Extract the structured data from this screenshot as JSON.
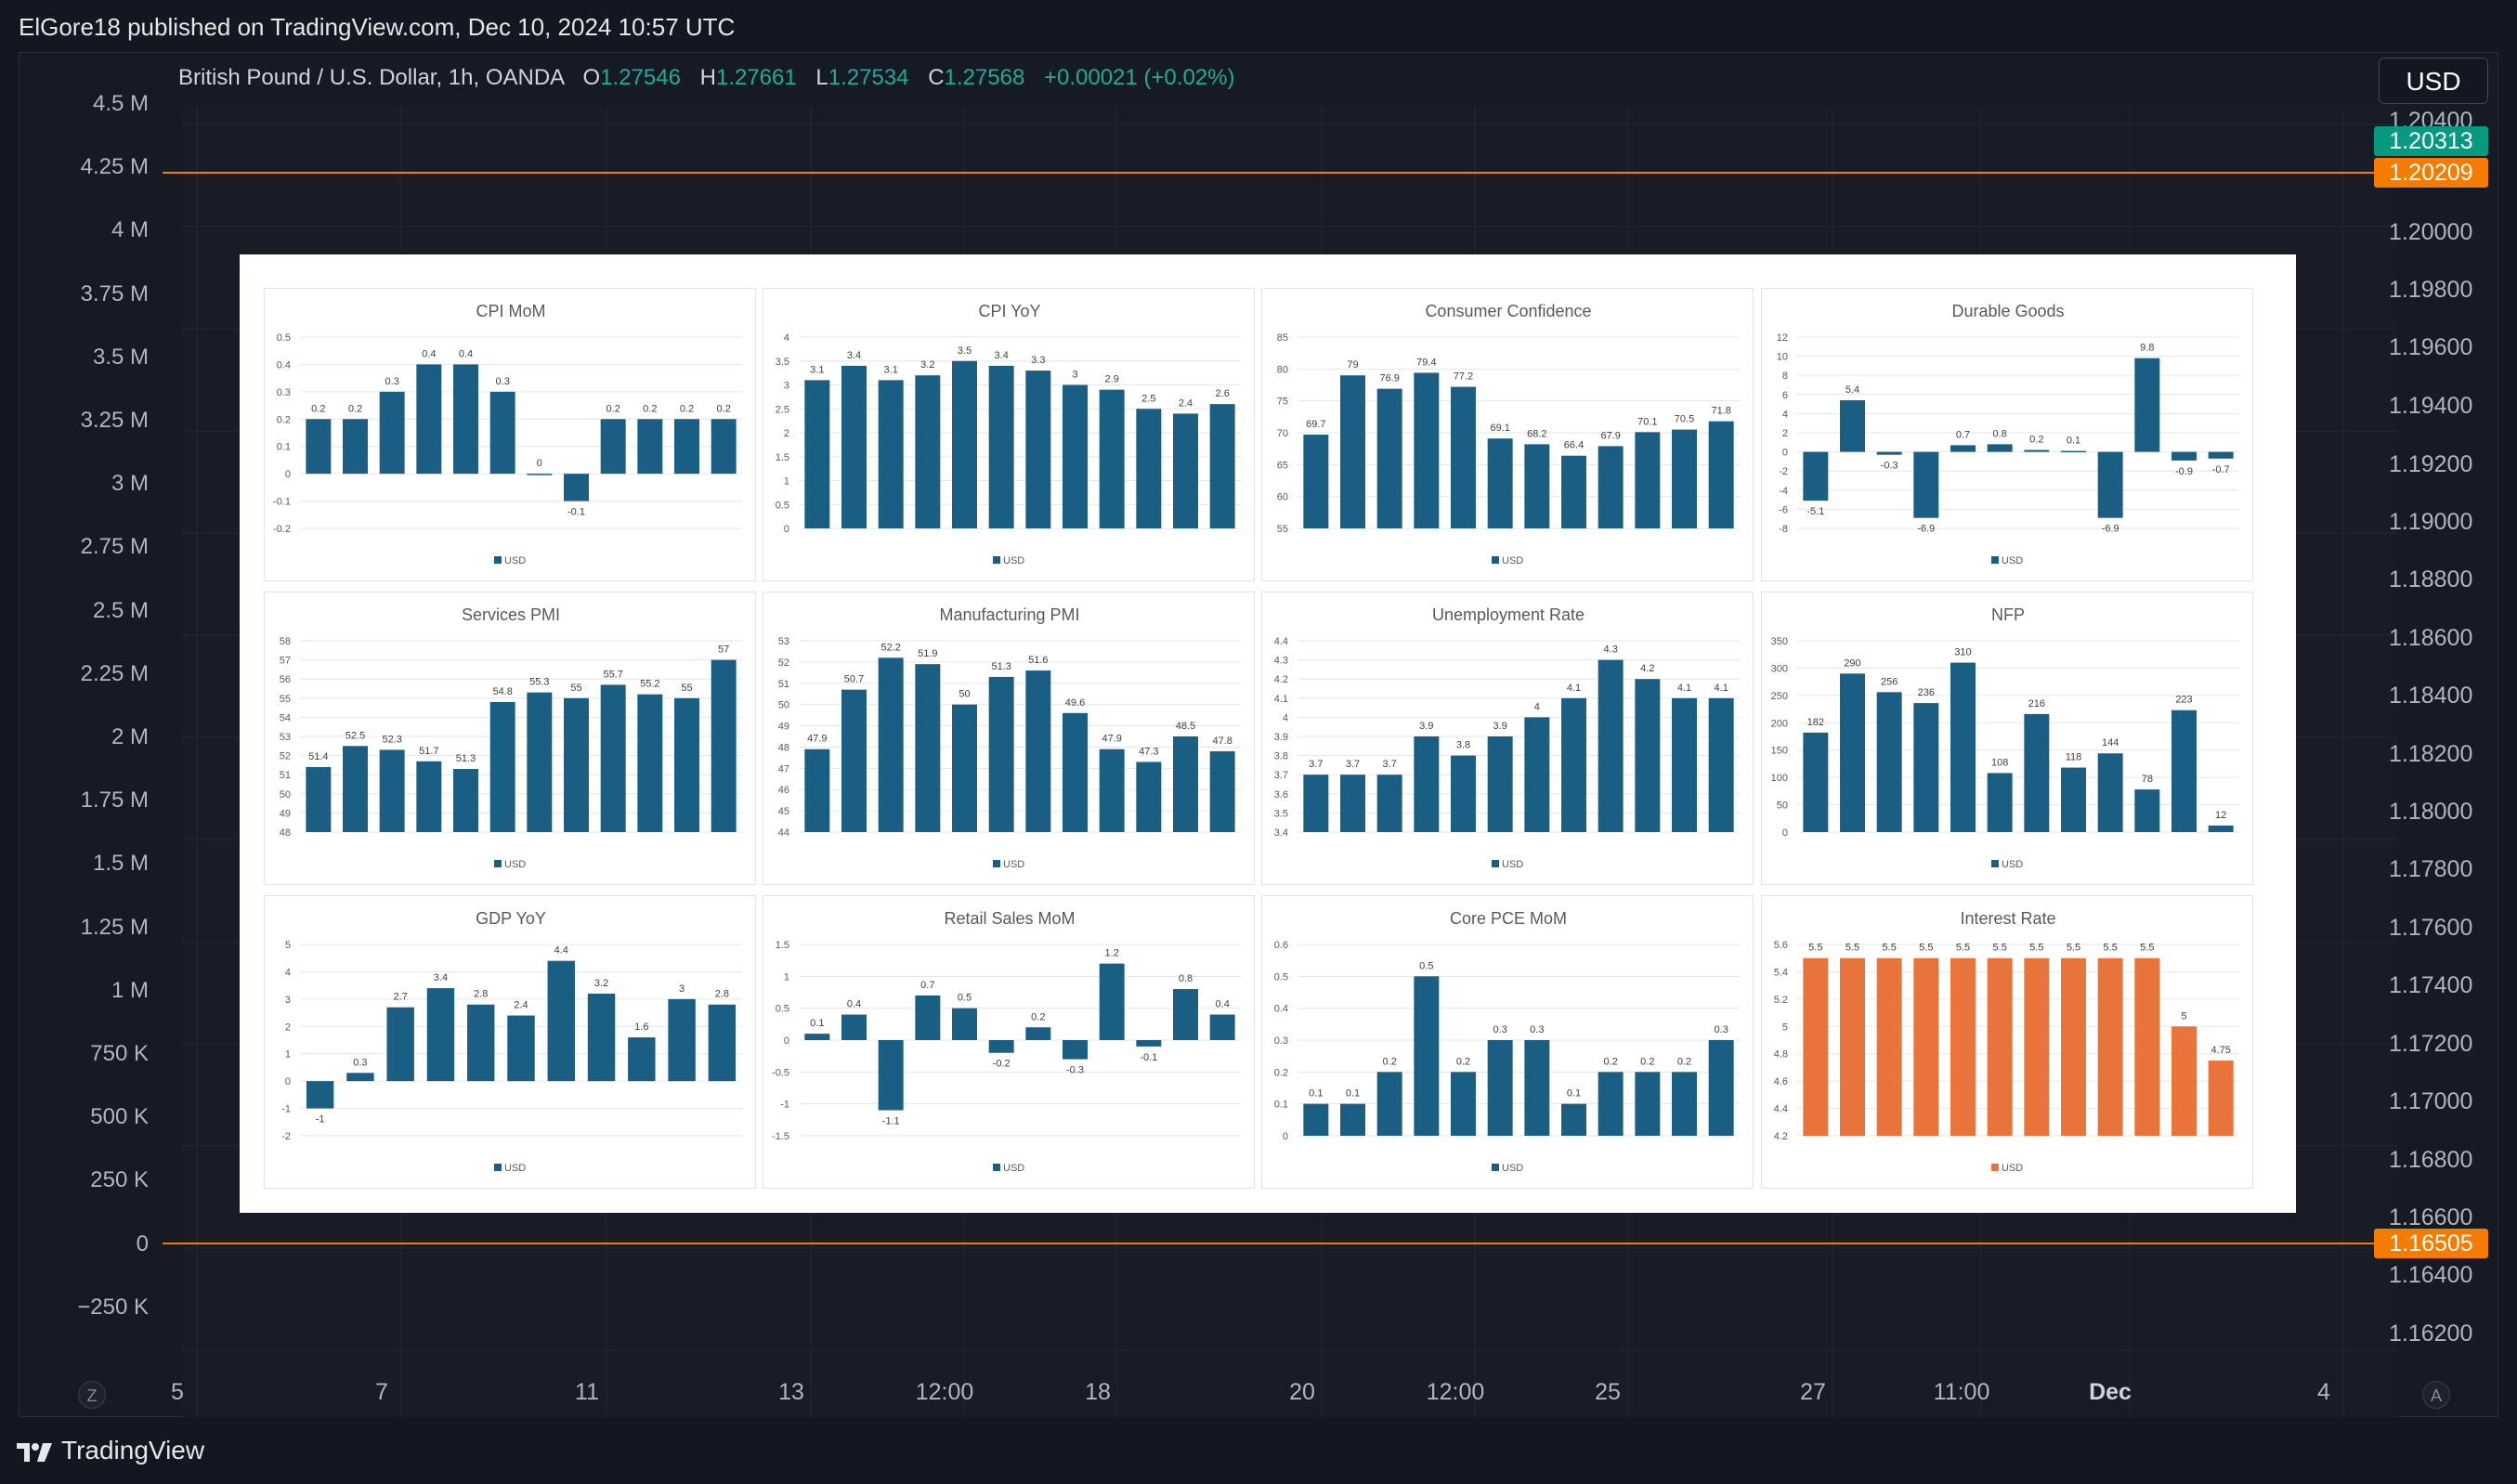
{
  "header": {
    "publish_line": "ElGore18 published on TradingView.com, Dec 10, 2024 10:57 UTC"
  },
  "legend": {
    "symbol": "British Pound / U.S. Dollar, 1h, OANDA",
    "open_label": "O",
    "open": "1.27546",
    "high_label": "H",
    "high": "1.27661",
    "low_label": "L",
    "low": "1.27534",
    "close_label": "C",
    "close": "1.27568",
    "change": "+0.00021 (+0.02%)"
  },
  "currency_button": "USD",
  "left_axis": [
    "4.5 M",
    "4.25 M",
    "4 M",
    "3.75 M",
    "3.5 M",
    "3.25 M",
    "3 M",
    "2.75 M",
    "2.5 M",
    "2.25 M",
    "2 M",
    "1.75 M",
    "1.5 M",
    "1.25 M",
    "1 M",
    "750 K",
    "500 K",
    "250 K",
    "0",
    "−250 K"
  ],
  "right_axis": [
    "1.20400",
    "1.20000",
    "1.19800",
    "1.19600",
    "1.19400",
    "1.19200",
    "1.19000",
    "1.18800",
    "1.18600",
    "1.18400",
    "1.18200",
    "1.18000",
    "1.17800",
    "1.17600",
    "1.17400",
    "1.17200",
    "1.17000",
    "1.16800",
    "1.16600",
    "1.16400",
    "1.16200"
  ],
  "price_badges": {
    "top": "1.20313",
    "mid": "1.20209",
    "low": "1.16505"
  },
  "x_axis": [
    "5",
    "7",
    "11",
    "13",
    "12:00",
    "18",
    "20",
    "12:00",
    "25",
    "27",
    "11:00",
    "Dec",
    "4"
  ],
  "corner_buttons": {
    "left": "Z",
    "right": "A"
  },
  "footer": {
    "brand": "TradingView"
  },
  "colors": {
    "bar": "#1b5e83",
    "bar_orange": "#e8743b",
    "accent_green": "#22ab94",
    "line_orange": "#f57c00"
  },
  "chart_data": [
    {
      "type": "bar",
      "title": "CPI MoM",
      "legend": "USD",
      "ylim": [
        -0.2,
        0.5
      ],
      "yticks": [
        "-0.2",
        "-0.1",
        "0",
        "0.1",
        "0.2",
        "0.3",
        "0.4",
        "0.5"
      ],
      "values": [
        0.2,
        0.2,
        0.3,
        0.4,
        0.4,
        0.3,
        0,
        -0.1,
        0.2,
        0.2,
        0.2,
        0.2
      ],
      "labels": [
        "0.2",
        "0.2",
        "0.3",
        "0.4",
        "0.4",
        "0.3",
        "0",
        "-0.1",
        "0.2",
        "0.2",
        "0.2",
        "0.2"
      ]
    },
    {
      "type": "bar",
      "title": "CPI YoY",
      "legend": "USD",
      "ylim": [
        0,
        4
      ],
      "yticks": [
        "0",
        "0.5",
        "1",
        "1.5",
        "2",
        "2.5",
        "3",
        "3.5",
        "4"
      ],
      "values": [
        3.1,
        3.4,
        3.1,
        3.2,
        3.5,
        3.4,
        3.3,
        3,
        2.9,
        2.5,
        2.4,
        2.6
      ],
      "labels": [
        "3.1",
        "3.4",
        "3.1",
        "3.2",
        "3.5",
        "3.4",
        "3.3",
        "3",
        "2.9",
        "2.5",
        "2.4",
        "2.6"
      ]
    },
    {
      "type": "bar",
      "title": "Consumer Confidence",
      "legend": "USD",
      "ylim": [
        55,
        85
      ],
      "yticks": [
        "55",
        "60",
        "65",
        "70",
        "75",
        "80",
        "85"
      ],
      "values": [
        69.7,
        79,
        76.9,
        79.4,
        77.2,
        69.1,
        68.2,
        66.4,
        67.9,
        70.1,
        70.5,
        71.8
      ],
      "labels": [
        "69.7",
        "79",
        "76.9",
        "79.4",
        "77.2",
        "69.1",
        "68.2",
        "66.4",
        "67.9",
        "70.1",
        "70.5",
        "71.8"
      ]
    },
    {
      "type": "bar",
      "title": "Durable Goods",
      "legend": "USD",
      "ylim": [
        -8,
        12
      ],
      "yticks": [
        "-8",
        "-6",
        "-4",
        "-2",
        "0",
        "2",
        "4",
        "6",
        "8",
        "10",
        "12"
      ],
      "values": [
        -5.1,
        5.4,
        -0.3,
        -6.9,
        0.7,
        0.8,
        0.2,
        0.1,
        -6.9,
        9.8,
        -0.9,
        -0.7
      ],
      "labels": [
        "-5.1",
        "5.4",
        "-0.3",
        "-6.9",
        "0.7",
        "0.8",
        "0.2",
        "0.1",
        "-6.9",
        "9.8",
        "-0.9",
        "-0.7"
      ]
    },
    {
      "type": "bar",
      "title": "Services PMI",
      "legend": "USD",
      "ylim": [
        48,
        58
      ],
      "yticks": [
        "48",
        "49",
        "50",
        "51",
        "52",
        "53",
        "54",
        "55",
        "56",
        "57",
        "58"
      ],
      "values": [
        51.4,
        52.5,
        52.3,
        51.7,
        51.3,
        54.8,
        55.3,
        55,
        55.7,
        55.2,
        55,
        57
      ],
      "labels": [
        "51.4",
        "52.5",
        "52.3",
        "51.7",
        "51.3",
        "54.8",
        "55.3",
        "55",
        "55.7",
        "55.2",
        "55",
        "57"
      ]
    },
    {
      "type": "bar",
      "title": "Manufacturing PMI",
      "legend": "USD",
      "ylim": [
        44,
        53
      ],
      "yticks": [
        "44",
        "45",
        "46",
        "47",
        "48",
        "49",
        "50",
        "51",
        "52",
        "53"
      ],
      "values": [
        47.9,
        50.7,
        52.2,
        51.9,
        50,
        51.3,
        51.6,
        49.6,
        47.9,
        47.3,
        48.5,
        47.8
      ],
      "labels": [
        "47.9",
        "50.7",
        "52.2",
        "51.9",
        "50",
        "51.3",
        "51.6",
        "49.6",
        "47.9",
        "47.3",
        "48.5",
        "47.8"
      ]
    },
    {
      "type": "bar",
      "title": "Unemployment Rate",
      "legend": "USD",
      "ylim": [
        3.4,
        4.4
      ],
      "yticks": [
        "3.4",
        "3.5",
        "3.6",
        "3.7",
        "3.8",
        "3.9",
        "4",
        "4.1",
        "4.2",
        "4.3",
        "4.4"
      ],
      "values": [
        3.7,
        3.7,
        3.7,
        3.9,
        3.8,
        3.9,
        4,
        4.1,
        4.3,
        4.2,
        4.1,
        4.1
      ],
      "labels": [
        "3.7",
        "3.7",
        "3.7",
        "3.9",
        "3.8",
        "3.9",
        "4",
        "4.1",
        "4.3",
        "4.2",
        "4.1",
        "4.1"
      ]
    },
    {
      "type": "bar",
      "title": "NFP",
      "legend": "USD",
      "ylim": [
        0,
        350
      ],
      "yticks": [
        "0",
        "50",
        "100",
        "150",
        "200",
        "250",
        "300",
        "350"
      ],
      "values": [
        182,
        290,
        256,
        236,
        310,
        108,
        216,
        118,
        144,
        78,
        223,
        12
      ],
      "labels": [
        "182",
        "290",
        "256",
        "236",
        "310",
        "108",
        "216",
        "118",
        "144",
        "78",
        "223",
        "12"
      ]
    },
    {
      "type": "bar",
      "title": "GDP YoY",
      "legend": "USD",
      "ylim": [
        -2,
        5
      ],
      "yticks": [
        "-2",
        "-1",
        "0",
        "1",
        "2",
        "3",
        "4",
        "5"
      ],
      "values": [
        -1,
        0.3,
        2.7,
        3.4,
        2.8,
        2.4,
        4.4,
        3.2,
        1.6,
        3,
        2.8
      ],
      "labels": [
        "-1",
        "0.3",
        "2.7",
        "3.4",
        "2.8",
        "2.4",
        "4.4",
        "3.2",
        "1.6",
        "3",
        "2.8"
      ]
    },
    {
      "type": "bar",
      "title": "Retail Sales MoM",
      "legend": "USD",
      "ylim": [
        -1.5,
        1.5
      ],
      "yticks": [
        "-1.5",
        "-1",
        "-0.5",
        "0",
        "0.5",
        "1",
        "1.5"
      ],
      "values": [
        0.1,
        0.4,
        -1.1,
        0.7,
        0.5,
        -0.2,
        0.2,
        -0.3,
        1.2,
        -0.1,
        0.8,
        0.4
      ],
      "labels": [
        "0.1",
        "0.4",
        "-1.1",
        "0.7",
        "0.5",
        "-0.2",
        "0.2",
        "-0.3",
        "1.2",
        "-0.1",
        "0.8",
        "0.4"
      ]
    },
    {
      "type": "bar",
      "title": "Core PCE MoM",
      "legend": "USD",
      "ylim": [
        0,
        0.6
      ],
      "yticks": [
        "0",
        "0.1",
        "0.2",
        "0.3",
        "0.4",
        "0.5",
        "0.6"
      ],
      "values": [
        0.1,
        0.1,
        0.2,
        0.5,
        0.2,
        0.3,
        0.3,
        0.1,
        0.2,
        0.2,
        0.2,
        0.3
      ],
      "labels": [
        "0.1",
        "0.1",
        "0.2",
        "0.5",
        "0.2",
        "0.3",
        "0.3",
        "0.1",
        "0.2",
        "0.2",
        "0.2",
        "0.3"
      ]
    },
    {
      "type": "bar",
      "title": "Interest Rate",
      "legend": "USD",
      "orange": true,
      "ylim": [
        4.2,
        5.6
      ],
      "yticks": [
        "4.2",
        "4.4",
        "4.6",
        "4.8",
        "5",
        "5.2",
        "5.4",
        "5.6"
      ],
      "values": [
        5.5,
        5.5,
        5.5,
        5.5,
        5.5,
        5.5,
        5.5,
        5.5,
        5.5,
        5.5,
        5,
        4.75
      ],
      "labels": [
        "5.5",
        "5.5",
        "5.5",
        "5.5",
        "5.5",
        "5.5",
        "5.5",
        "5.5",
        "5.5",
        "5.5",
        "5",
        "4.75"
      ]
    }
  ]
}
